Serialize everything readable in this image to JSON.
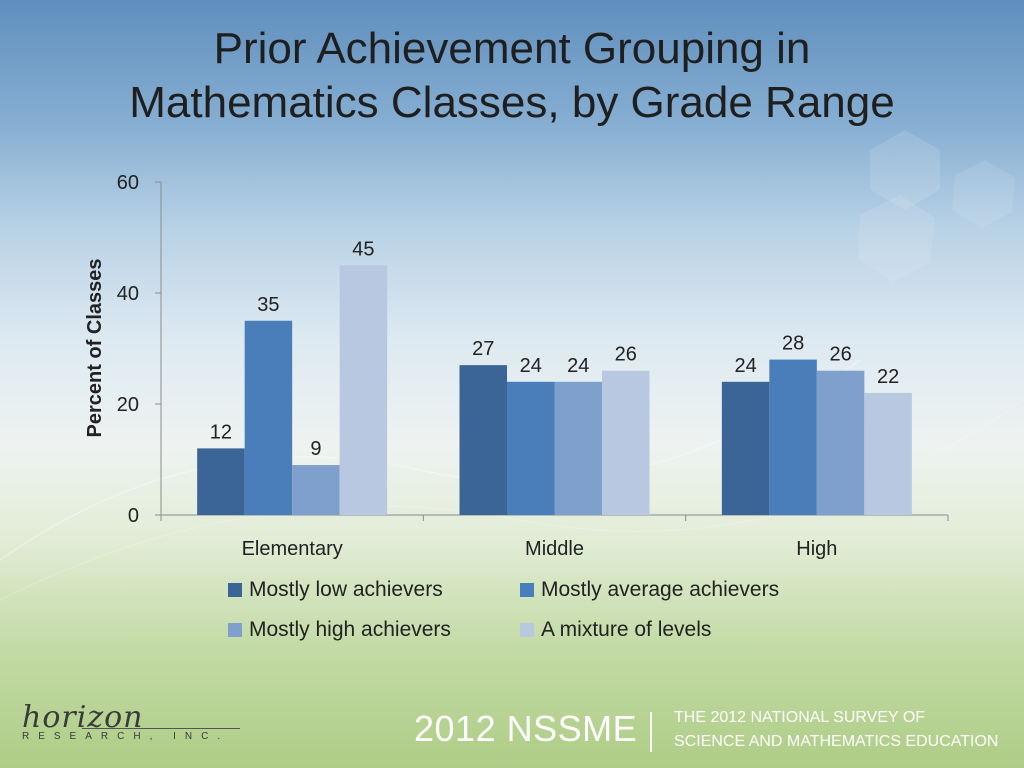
{
  "title_line1": "Prior Achievement Grouping in",
  "title_line2": "Mathematics Classes, by Grade Range",
  "colors": {
    "low": "#3b6597",
    "average": "#4a7ebb",
    "high": "#7f9fcc",
    "mixture": "#b8c8e1"
  },
  "chart_data": {
    "type": "bar",
    "title": "Prior Achievement Grouping in Mathematics Classes, by Grade Range",
    "xlabel": "",
    "ylabel": "Percent of Classes",
    "ylim": [
      0,
      60
    ],
    "yticks": [
      0,
      20,
      40,
      60
    ],
    "categories": [
      "Elementary",
      "Middle",
      "High"
    ],
    "series": [
      {
        "name": "Mostly low achievers",
        "values": [
          12,
          27,
          24
        ]
      },
      {
        "name": "Mostly average achievers",
        "values": [
          35,
          24,
          28
        ]
      },
      {
        "name": "Mostly high achievers",
        "values": [
          9,
          24,
          26
        ]
      },
      {
        "name": "A mixture of levels",
        "values": [
          45,
          26,
          22
        ]
      }
    ],
    "legend_placement": "bottom",
    "grid": false
  },
  "footer": {
    "logo_script": "horizon",
    "logo_sub": "RESEARCH, INC.",
    "nssme": "2012 NSSME",
    "survey_line1": "THE 2012 NATIONAL SURVEY OF",
    "survey_line2": "SCIENCE AND MATHEMATICS EDUCATION"
  }
}
